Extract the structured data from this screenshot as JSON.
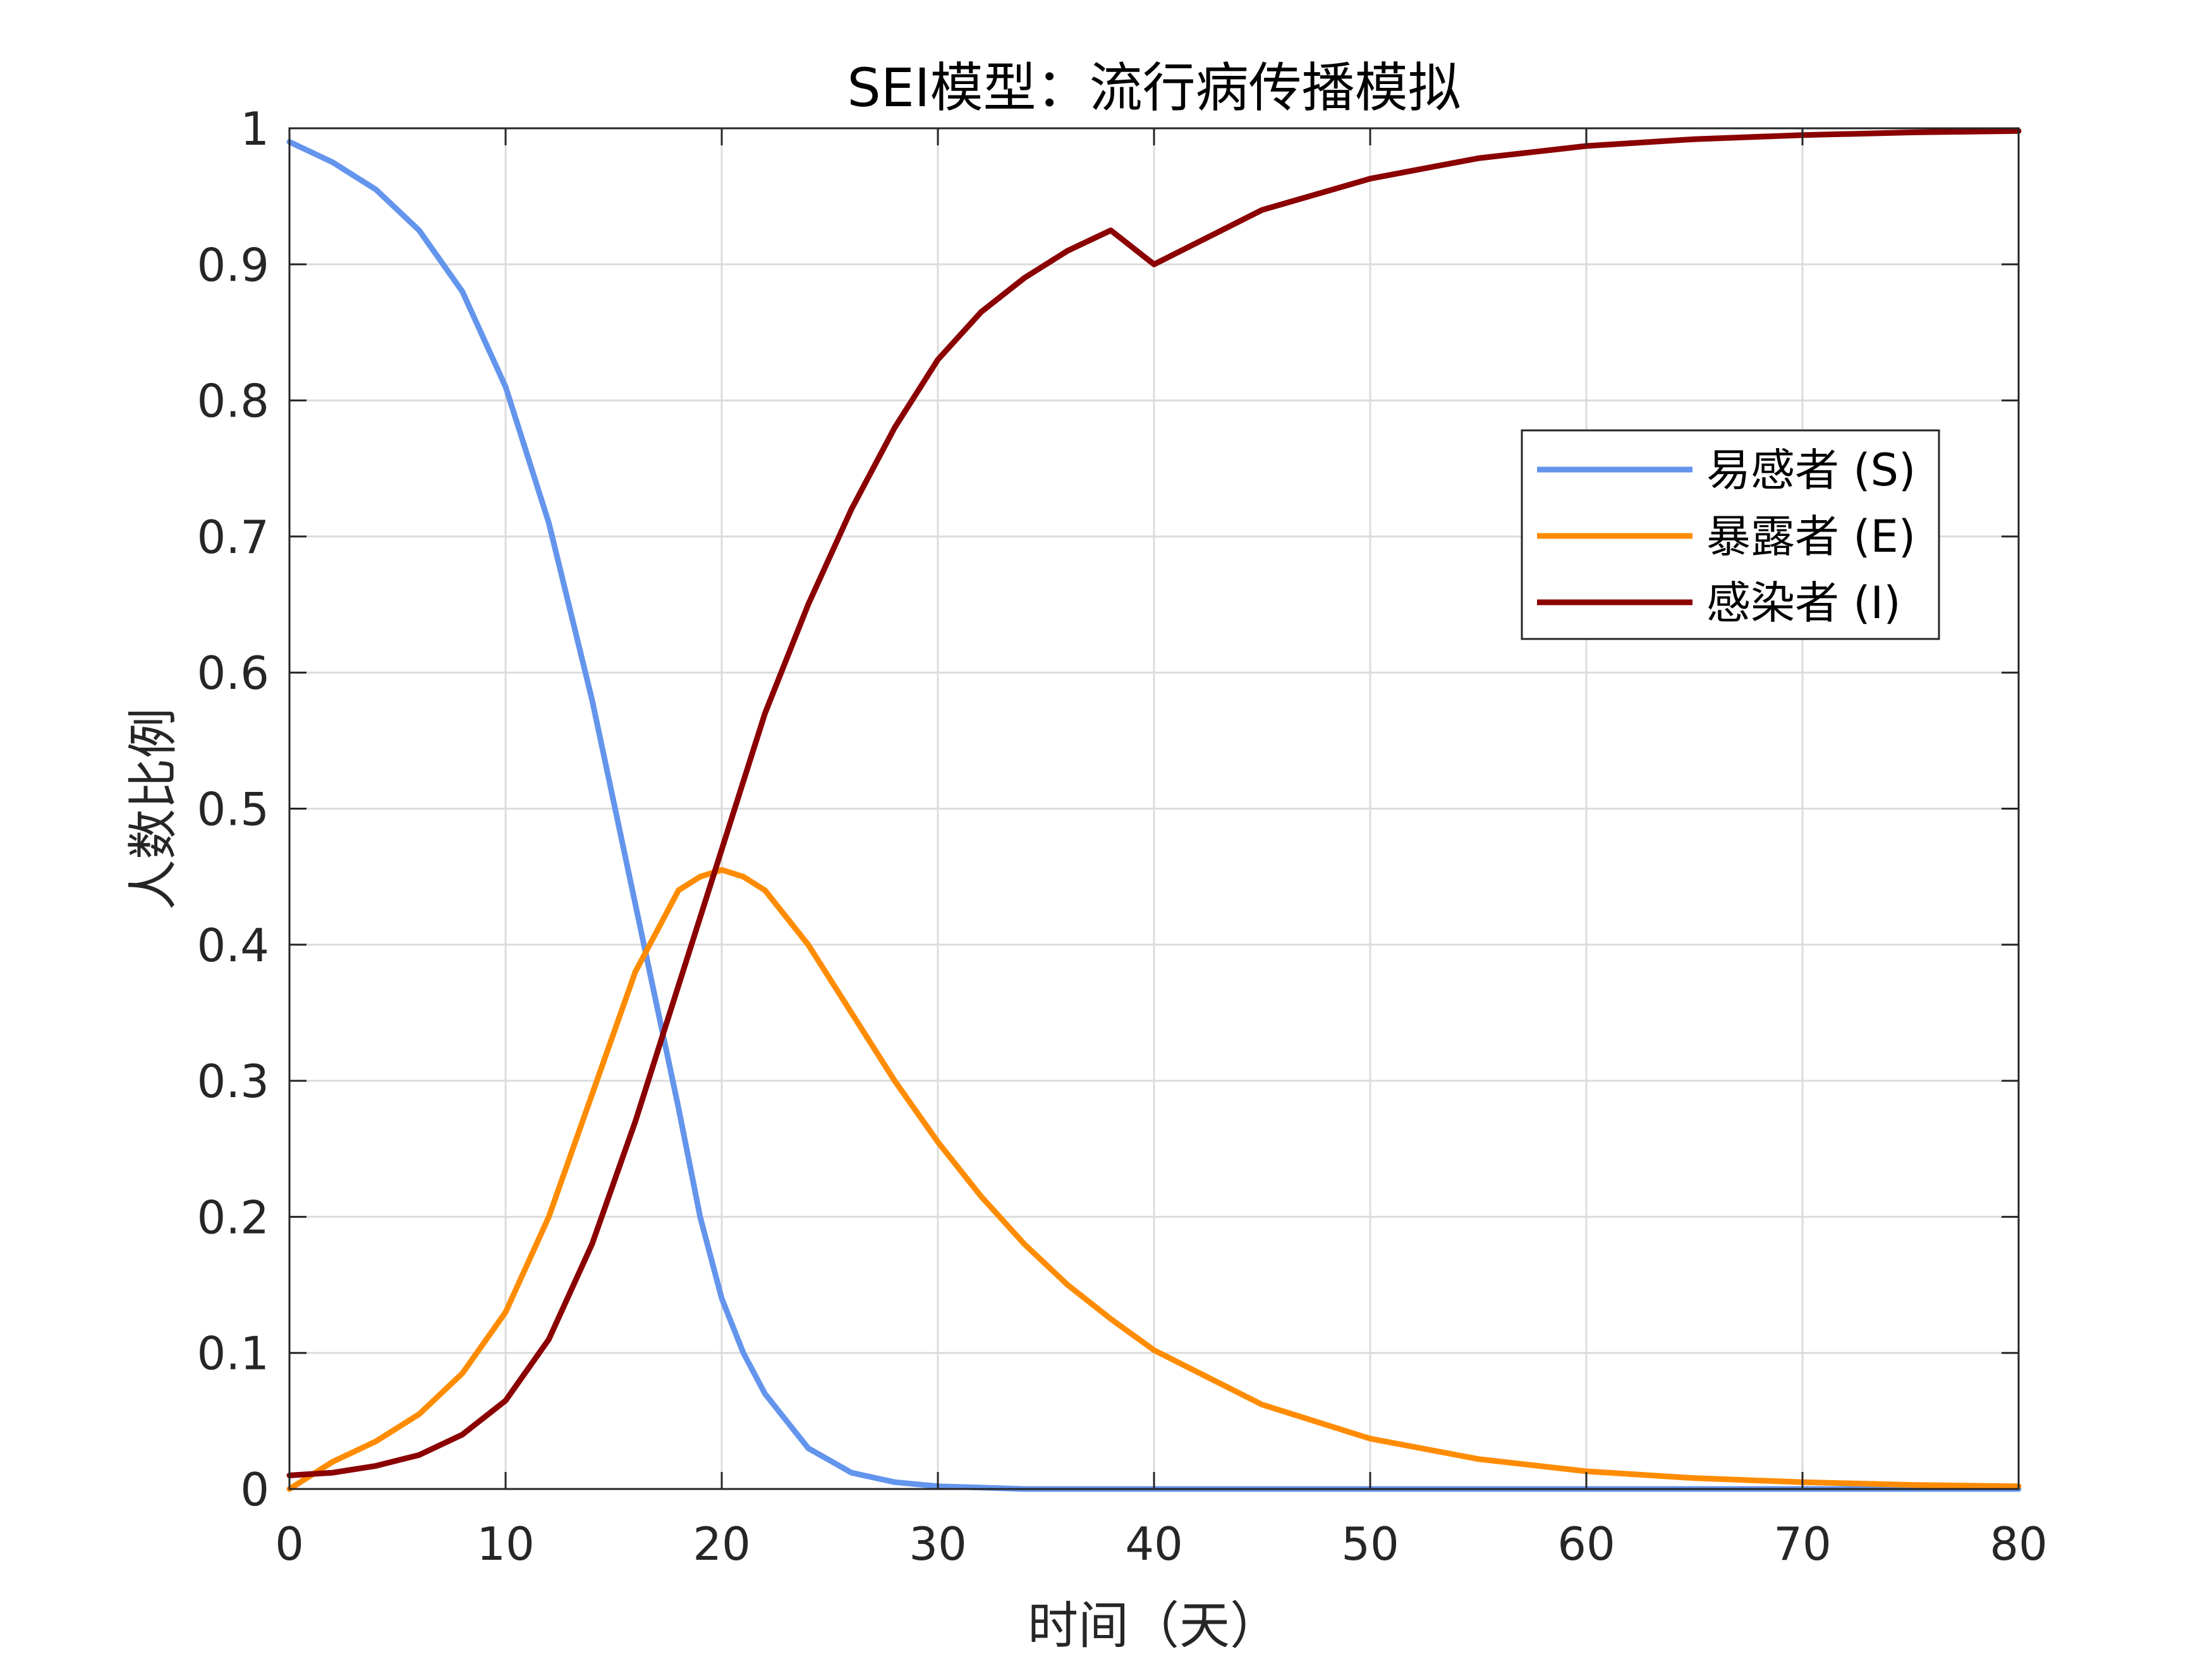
{
  "chart_data": {
    "type": "line",
    "title": "SEI模型：流行病传播模拟",
    "xlabel": "时间（天）",
    "ylabel": "人数比例",
    "xlim": [
      0,
      80
    ],
    "ylim": [
      0,
      1
    ],
    "xticks": [
      "0",
      "10",
      "20",
      "30",
      "40",
      "50",
      "60",
      "70",
      "80"
    ],
    "yticks": [
      "0",
      "0.1",
      "0.2",
      "0.3",
      "0.4",
      "0.5",
      "0.6",
      "0.7",
      "0.8",
      "0.9",
      "1"
    ],
    "grid": true,
    "legend_position": "upper-right",
    "x": [
      0,
      2,
      4,
      6,
      8,
      10,
      12,
      14,
      16,
      18,
      19,
      20,
      21,
      22,
      24,
      26,
      28,
      30,
      32,
      34,
      36,
      38,
      40,
      45,
      50,
      55,
      60,
      65,
      70,
      75,
      80
    ],
    "series": [
      {
        "name": "易感者 (S)",
        "color": "#6495ED",
        "values": [
          0.99,
          0.975,
          0.955,
          0.925,
          0.88,
          0.81,
          0.71,
          0.58,
          0.43,
          0.28,
          0.2,
          0.14,
          0.1,
          0.07,
          0.03,
          0.012,
          0.005,
          0.002,
          0.001,
          0.0,
          0.0,
          0.0,
          0.0,
          0.0,
          0.0,
          0.0,
          0.0,
          0.0,
          0.0,
          0.0,
          0.0
        ]
      },
      {
        "name": "暴露者 (E)",
        "color": "#FF8C00",
        "values": [
          0.0,
          0.02,
          0.035,
          0.055,
          0.085,
          0.13,
          0.2,
          0.29,
          0.38,
          0.44,
          0.45,
          0.455,
          0.45,
          0.44,
          0.4,
          0.35,
          0.3,
          0.255,
          0.215,
          0.18,
          0.15,
          0.125,
          0.102,
          0.062,
          0.037,
          0.022,
          0.013,
          0.008,
          0.005,
          0.003,
          0.002
        ]
      },
      {
        "name": "感染者 (I)",
        "color": "#8B0000",
        "values": [
          0.01,
          0.012,
          0.017,
          0.025,
          0.04,
          0.065,
          0.11,
          0.18,
          0.27,
          0.37,
          0.42,
          0.47,
          0.52,
          0.57,
          0.65,
          0.72,
          0.78,
          0.83,
          0.865,
          0.89,
          0.91,
          0.925,
          0.9,
          0.94,
          0.963,
          0.978,
          0.987,
          0.992,
          0.995,
          0.997,
          0.998
        ]
      }
    ]
  }
}
